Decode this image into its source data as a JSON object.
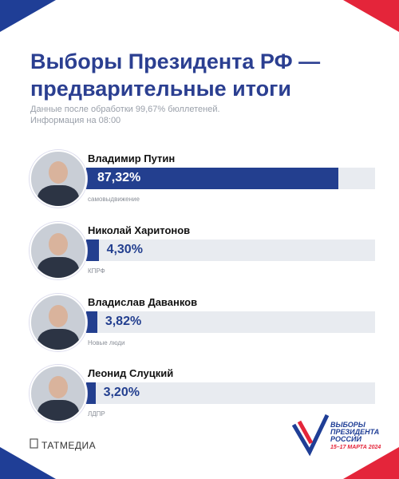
{
  "chart_data": {
    "type": "bar",
    "title": "Выборы Президента РФ — предварительные итоги",
    "subtitle": "Данные после обработки 99,67% бюллетеней.",
    "note": "Информация на 08:00",
    "categories": [
      "Владимир Путин",
      "Николай Харитонов",
      "Владислав Даванков",
      "Леонид Слуцкий"
    ],
    "parties": [
      "самовыдвижение",
      "КПРФ",
      "Новые люди",
      "ЛДПР"
    ],
    "values": [
      87.32,
      4.3,
      3.82,
      3.2
    ],
    "value_labels": [
      "87,32%",
      "4,30%",
      "3,82%",
      "3,20%"
    ],
    "color": "#233f8f",
    "xlim": [
      0,
      100
    ]
  },
  "footer": {
    "brand": "ТАТМЕДИА",
    "logo_lines": [
      "ВЫБОРЫ",
      "ПРЕЗИДЕНТА",
      "РОССИИ"
    ],
    "logo_dates": "15–17 МАРТА 2024"
  }
}
